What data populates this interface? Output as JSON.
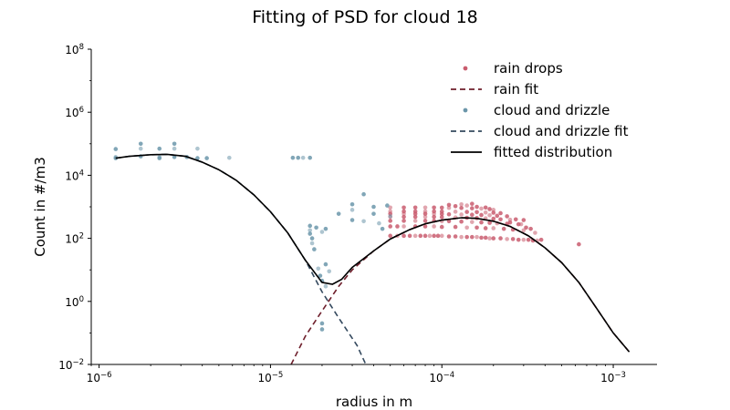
{
  "chart_data": {
    "type": "scatter",
    "title": "Fitting of PSD for cloud 18",
    "xlabel": "radius in m",
    "ylabel": "Count in #/m3",
    "xscale": "log",
    "yscale": "log",
    "xlim": [
      9e-07,
      0.0018
    ],
    "ylim": [
      0.01,
      100000000
    ],
    "xticks": [
      {
        "value": 1e-06,
        "base": "10",
        "exp": "−6"
      },
      {
        "value": 1e-05,
        "base": "10",
        "exp": "−5"
      },
      {
        "value": 0.0001,
        "base": "10",
        "exp": "−4"
      },
      {
        "value": 0.001,
        "base": "10",
        "exp": "−3"
      }
    ],
    "yticks": [
      {
        "value": 0.01,
        "base": "10",
        "exp": "−2"
      },
      {
        "value": 1,
        "base": "10",
        "exp": "0"
      },
      {
        "value": 100,
        "base": "10",
        "exp": "2"
      },
      {
        "value": 10000,
        "base": "10",
        "exp": "4"
      },
      {
        "value": 1000000,
        "base": "10",
        "exp": "6"
      },
      {
        "value": 100000000,
        "base": "10",
        "exp": "8"
      }
    ],
    "grid": false,
    "legend_position": "top-right",
    "series": [
      {
        "name": "rain drops",
        "kind": "scatter",
        "color": "#c95c6e",
        "points": [
          [
            5e-05,
            120.0
          ],
          [
            5.5e-05,
            120.0
          ],
          [
            6e-05,
            120.0
          ],
          [
            6.5e-05,
            120.0
          ],
          [
            7e-05,
            120.0
          ],
          [
            7.5e-05,
            120.0
          ],
          [
            8e-05,
            120.0
          ],
          [
            8.5e-05,
            120.0
          ],
          [
            9e-05,
            120.0
          ],
          [
            9.5e-05,
            120.0
          ],
          [
            0.0001,
            120.0
          ],
          [
            0.00011,
            115.0
          ],
          [
            0.00012,
            115.0
          ],
          [
            0.00013,
            110.0
          ],
          [
            0.00014,
            110.0
          ],
          [
            0.00015,
            110.0
          ],
          [
            0.00016,
            110.0
          ],
          [
            0.00017,
            105.0
          ],
          [
            0.00018,
            105.0
          ],
          [
            0.00019,
            100.0
          ],
          [
            0.0002,
            100.0
          ],
          [
            0.00022,
            100.0
          ],
          [
            0.00024,
            95.0
          ],
          [
            0.00026,
            95.0
          ],
          [
            0.00028,
            90.0
          ],
          [
            0.0003,
            90.0
          ],
          [
            0.00032,
            90.0
          ],
          [
            0.00034,
            85.0
          ],
          [
            0.00036,
            85.0
          ],
          [
            5e-05,
            240.0
          ],
          [
            5.5e-05,
            240.0
          ],
          [
            6e-05,
            240.0
          ],
          [
            7e-05,
            240.0
          ],
          [
            8e-05,
            240.0
          ],
          [
            9e-05,
            240.0
          ],
          [
            0.0001,
            230.0
          ],
          [
            0.00012,
            230.0
          ],
          [
            0.00014,
            220.0
          ],
          [
            0.00016,
            220.0
          ],
          [
            0.00018,
            210.0
          ],
          [
            0.0002,
            210.0
          ],
          [
            0.00023,
            200.0
          ],
          [
            0.00026,
            190.0
          ],
          [
            0.0003,
            180.0
          ],
          [
            5e-05,
            360.0
          ],
          [
            6e-05,
            360.0
          ],
          [
            7e-05,
            360.0
          ],
          [
            8e-05,
            360.0
          ],
          [
            9e-05,
            360.0
          ],
          [
            0.0001,
            350.0
          ],
          [
            0.00011,
            350.0
          ],
          [
            0.00013,
            340.0
          ],
          [
            0.00015,
            330.0
          ],
          [
            0.00017,
            320.0
          ],
          [
            0.00019,
            310.0
          ],
          [
            0.00021,
            300.0
          ],
          [
            0.00024,
            290.0
          ],
          [
            0.00028,
            280.0
          ],
          [
            5e-05,
            480.0
          ],
          [
            6e-05,
            480.0
          ],
          [
            7e-05,
            480.0
          ],
          [
            8e-05,
            480.0
          ],
          [
            9e-05,
            480.0
          ],
          [
            0.0001,
            470.0
          ],
          [
            0.00012,
            460.0
          ],
          [
            0.00014,
            450.0
          ],
          [
            0.00016,
            440.0
          ],
          [
            0.00018,
            430.0
          ],
          [
            0.0002,
            420.0
          ],
          [
            0.00022,
            400.0
          ],
          [
            0.00025,
            390.0
          ],
          [
            0.0003,
            380.0
          ],
          [
            5e-05,
            600.0
          ],
          [
            6e-05,
            600.0
          ],
          [
            7e-05,
            600.0
          ],
          [
            8e-05,
            600.0
          ],
          [
            9e-05,
            600.0
          ],
          [
            0.0001,
            590.0
          ],
          [
            0.00011,
            580.0
          ],
          [
            0.00013,
            570.0
          ],
          [
            0.00015,
            560.0
          ],
          [
            0.00017,
            550.0
          ],
          [
            0.00019,
            540.0
          ],
          [
            0.00021,
            520.0
          ],
          [
            0.00024,
            500.0
          ],
          [
            5e-05,
            720.0
          ],
          [
            6e-05,
            720.0
          ],
          [
            7e-05,
            720.0
          ],
          [
            8e-05,
            720.0
          ],
          [
            9e-05,
            720.0
          ],
          [
            0.0001,
            710.0
          ],
          [
            0.00012,
            700.0
          ],
          [
            0.00014,
            690.0
          ],
          [
            0.00016,
            680.0
          ],
          [
            0.00018,
            660.0
          ],
          [
            0.0002,
            650.0
          ],
          [
            0.00022,
            630.0
          ],
          [
            5e-05,
            950.0
          ],
          [
            6e-05,
            950.0
          ],
          [
            7e-05,
            950.0
          ],
          [
            8e-05,
            950.0
          ],
          [
            9e-05,
            950.0
          ],
          [
            0.0001,
            940.0
          ],
          [
            0.00011,
            930.0
          ],
          [
            0.00013,
            920.0
          ],
          [
            0.00015,
            900.0
          ],
          [
            0.00017,
            880.0
          ],
          [
            0.00019,
            850.0
          ],
          [
            0.00011,
            1150.0
          ],
          [
            0.00013,
            1200.0
          ],
          [
            0.00015,
            1250.0
          ],
          [
            0.00012,
            1050.0
          ],
          [
            0.00014,
            1100.0
          ],
          [
            0.00016,
            1000.0
          ],
          [
            0.00018,
            950.0
          ],
          [
            0.0002,
            800.0
          ],
          [
            0.00025,
            320.0
          ],
          [
            0.00027,
            400.0
          ],
          [
            0.00029,
            280.0
          ],
          [
            0.00031,
            220.0
          ],
          [
            0.00033,
            200.0
          ],
          [
            0.00035,
            150.0
          ],
          [
            0.00038,
            90.0
          ],
          [
            0.00063,
            65.0
          ]
        ]
      },
      {
        "name": "rain fit",
        "kind": "line",
        "color": "#6e1e2b",
        "dash": "6,4",
        "points": [
          [
            1.32e-05,
            0.01
          ],
          [
            1.6e-05,
            0.08
          ],
          [
            2e-05,
            0.5
          ],
          [
            2.5e-05,
            3.0
          ],
          [
            3e-05,
            10
          ],
          [
            4e-05,
            40
          ],
          [
            5e-05,
            95
          ],
          [
            6.5e-05,
            190
          ],
          [
            8e-05,
            290
          ],
          [
            0.0001,
            380
          ],
          [
            0.00013,
            450
          ],
          [
            0.00016,
            430
          ],
          [
            0.0002,
            350
          ],
          [
            0.00025,
            240
          ],
          [
            0.00032,
            120
          ],
          [
            0.0004,
            50
          ],
          [
            0.0005,
            17
          ],
          [
            0.00063,
            4
          ],
          [
            0.0008,
            0.6
          ],
          [
            0.001,
            0.1
          ],
          [
            0.00124,
            0.025
          ]
        ]
      },
      {
        "name": "cloud and drizzle",
        "kind": "scatter",
        "color": "#6b96aa",
        "points": [
          [
            1.25e-06,
            68000.0
          ],
          [
            1.25e-06,
            38000.0
          ],
          [
            1.25e-06,
            35000.0
          ],
          [
            1.75e-06,
            100000.0
          ],
          [
            1.75e-06,
            70000.0
          ],
          [
            1.75e-06,
            40000.0
          ],
          [
            2.25e-06,
            70000.0
          ],
          [
            2.25e-06,
            38000.0
          ],
          [
            2.25e-06,
            35000.0
          ],
          [
            2.75e-06,
            100000.0
          ],
          [
            2.75e-06,
            70000.0
          ],
          [
            2.75e-06,
            38000.0
          ],
          [
            3.25e-06,
            38000.0
          ],
          [
            3.75e-06,
            70000.0
          ],
          [
            3.75e-06,
            35000.0
          ],
          [
            4.25e-06,
            35000.0
          ],
          [
            5.75e-06,
            36000.0
          ],
          [
            1.35e-05,
            36000.0
          ],
          [
            1.45e-05,
            36000.0
          ],
          [
            1.55e-05,
            36000.0
          ],
          [
            1.7e-05,
            36000.0
          ],
          [
            1.7e-05,
            250.0
          ],
          [
            1.7e-05,
            180.0
          ],
          [
            1.7e-05,
            140.0
          ],
          [
            1.75e-05,
            100.0
          ],
          [
            1.75e-05,
            70.0
          ],
          [
            1.8e-05,
            45.0
          ],
          [
            1.85e-05,
            220.0
          ],
          [
            1.9e-05,
            11.0
          ],
          [
            1.95e-05,
            6.5
          ],
          [
            2e-05,
            4.5
          ],
          [
            2e-05,
            160.0
          ],
          [
            2.1e-05,
            200.0
          ],
          [
            2.1e-05,
            15.0
          ],
          [
            2.1e-05,
            3.0
          ],
          [
            2e-05,
            0.2
          ],
          [
            2e-05,
            0.13
          ],
          [
            2.2e-05,
            9.0
          ],
          [
            2.5e-05,
            600.0
          ],
          [
            3e-05,
            1200.0
          ],
          [
            3e-05,
            800.0
          ],
          [
            3e-05,
            380.0
          ],
          [
            3.5e-05,
            2500.0
          ],
          [
            3.5e-05,
            350.0
          ],
          [
            4e-05,
            1000.0
          ],
          [
            4e-05,
            600.0
          ],
          [
            4.3e-05,
            300.0
          ],
          [
            4.5e-05,
            200.0
          ],
          [
            4.8e-05,
            1100.0
          ],
          [
            5e-05,
            500.0
          ]
        ]
      },
      {
        "name": "cloud and drizzle fit",
        "kind": "line",
        "color": "#34495e",
        "dash": "6,4",
        "points": [
          [
            1.25e-06,
            35000.0
          ],
          [
            1.5e-06,
            40000.0
          ],
          [
            2e-06,
            45000.0
          ],
          [
            2.5e-06,
            46000.0
          ],
          [
            3.2e-06,
            40000.0
          ],
          [
            4e-06,
            26000.0
          ],
          [
            5e-06,
            15000.0
          ],
          [
            6.3e-06,
            7000.0
          ],
          [
            8e-06,
            2400.0
          ],
          [
            1e-05,
            700.0
          ],
          [
            1.26e-05,
            150.0
          ],
          [
            1.6e-05,
            20
          ],
          [
            2e-05,
            2.0
          ],
          [
            2.5e-05,
            0.3
          ],
          [
            3.2e-05,
            0.04
          ],
          [
            3.6e-05,
            0.01
          ]
        ]
      },
      {
        "name": "fitted distribution",
        "kind": "line",
        "color": "#000000",
        "dash": "",
        "points": [
          [
            1.25e-06,
            35000.0
          ],
          [
            1.5e-06,
            40000.0
          ],
          [
            2e-06,
            45000.0
          ],
          [
            2.5e-06,
            46000.0
          ],
          [
            3.2e-06,
            40000.0
          ],
          [
            4e-06,
            26000.0
          ],
          [
            5e-06,
            15000.0
          ],
          [
            6.3e-06,
            7000.0
          ],
          [
            8e-06,
            2400.0
          ],
          [
            1e-05,
            700.0
          ],
          [
            1.26e-05,
            150.0
          ],
          [
            1.6e-05,
            20
          ],
          [
            2e-05,
            4.0
          ],
          [
            2.3e-05,
            3.5
          ],
          [
            2.6e-05,
            5.0
          ],
          [
            3e-05,
            12
          ],
          [
            4e-05,
            40
          ],
          [
            5e-05,
            95
          ],
          [
            6.5e-05,
            190
          ],
          [
            8e-05,
            290
          ],
          [
            0.0001,
            380
          ],
          [
            0.00013,
            450
          ],
          [
            0.00016,
            430
          ],
          [
            0.0002,
            350
          ],
          [
            0.00025,
            240
          ],
          [
            0.00032,
            120
          ],
          [
            0.0004,
            50
          ],
          [
            0.0005,
            17
          ],
          [
            0.00063,
            4
          ],
          [
            0.0008,
            0.6
          ],
          [
            0.001,
            0.1
          ],
          [
            0.00124,
            0.025
          ]
        ]
      }
    ]
  }
}
